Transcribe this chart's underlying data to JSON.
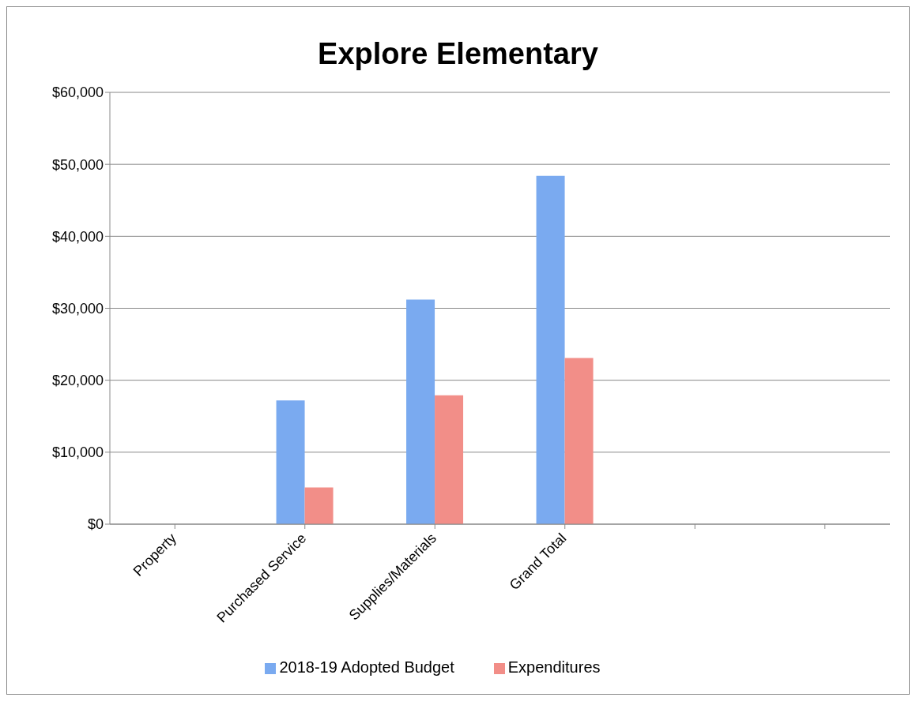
{
  "chart_data": {
    "type": "bar",
    "title": "Explore Elementary",
    "categories": [
      "Property",
      "Purchased Service",
      "Supplies/Materials",
      "Grand Total",
      null,
      null
    ],
    "series": [
      {
        "name": "2018-19 Adopted Budget",
        "color": "#7aaaf0",
        "values": [
          0,
          17200,
          31200,
          48400,
          null,
          null
        ]
      },
      {
        "name": "Expenditures",
        "color": "#f28e88",
        "values": [
          0,
          5100,
          17900,
          23100,
          null,
          null
        ]
      }
    ],
    "ylim": [
      0,
      60000
    ],
    "yticks": [
      {
        "value": 0,
        "label": "$0"
      },
      {
        "value": 10000,
        "label": "$10,000"
      },
      {
        "value": 20000,
        "label": "$20,000"
      },
      {
        "value": 30000,
        "label": "$30,000"
      },
      {
        "value": 40000,
        "label": "$40,000"
      },
      {
        "value": 50000,
        "label": "$50,000"
      },
      {
        "value": 60000,
        "label": "$60,000"
      }
    ],
    "grid": "y",
    "legend": "bottom"
  }
}
